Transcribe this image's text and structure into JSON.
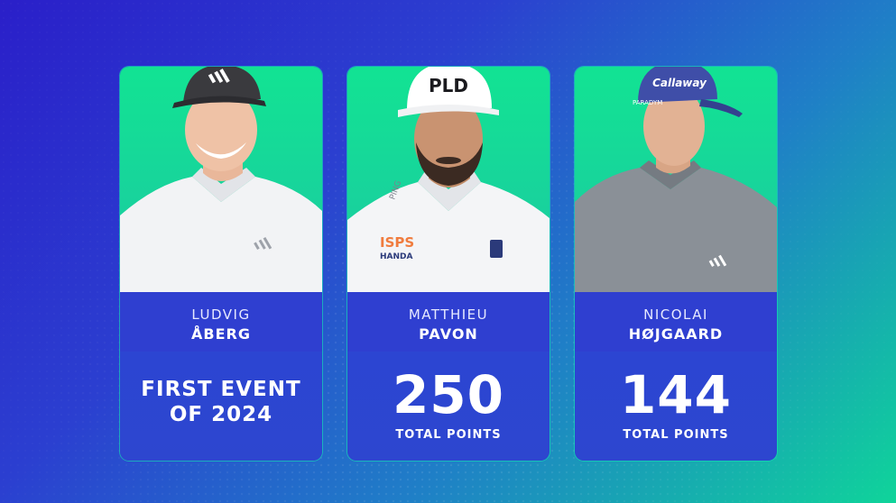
{
  "players": [
    {
      "first": "LUDVIG",
      "last": "ÅBERG",
      "headline": "FIRST EVENT OF 2024",
      "cap_logo": "adidas",
      "shirt_logo": "adidas"
    },
    {
      "first": "MATTHIEU",
      "last": "PAVON",
      "value": "250",
      "unit": "TOTAL POINTS",
      "cap_text": "PLD",
      "shirt_text_1": "ISPS",
      "shirt_text_2": "HANDA",
      "collar_text": "PING"
    },
    {
      "first": "NICOLAI",
      "last": "HØJGAARD",
      "value": "144",
      "unit": "TOTAL POINTS",
      "cap_text": "Callaway",
      "cap_side_text": "PARADYM",
      "shirt_logo": "adidas"
    }
  ],
  "colors": {
    "name_band": "#2f3fd0",
    "stat_band": "#2c45d2",
    "photo_bg": "#14dd98"
  }
}
